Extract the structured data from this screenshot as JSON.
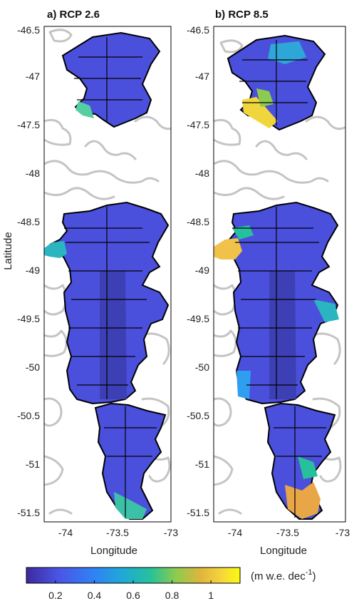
{
  "panels": [
    {
      "title": "a) RCP 2.6",
      "xlabel": "Longitude"
    },
    {
      "title": "b) RCP 8.5",
      "xlabel": "Longitude"
    }
  ],
  "ylabel": "Latitude",
  "x_ticks": [
    "-74",
    "-73.5",
    "-73"
  ],
  "y_ticks": [
    "-46.5",
    "-47",
    "-47.5",
    "-48",
    "-48.5",
    "-49",
    "-49.5",
    "-50",
    "-50.5",
    "-51",
    "-51.5"
  ],
  "colorbar": {
    "ticks": [
      "0.2",
      "0.4",
      "0.6",
      "0.8",
      "1"
    ],
    "unit_main": "(m w.e. dec",
    "unit_sup": "-1",
    "unit_close": ")",
    "range": [
      0.05,
      1.15
    ],
    "colors": [
      "#3c2a9e",
      "#4a55e6",
      "#2f83f4",
      "#1fa9d6",
      "#26c19b",
      "#8ccb4e",
      "#e2b53c",
      "#f7d93a",
      "#f9fb0e"
    ]
  },
  "colors": {
    "glacier_base": "#4a50dc",
    "glacier_core": "#3a3aa8",
    "coast": "#c4c4c4",
    "outline": "#000000"
  }
}
